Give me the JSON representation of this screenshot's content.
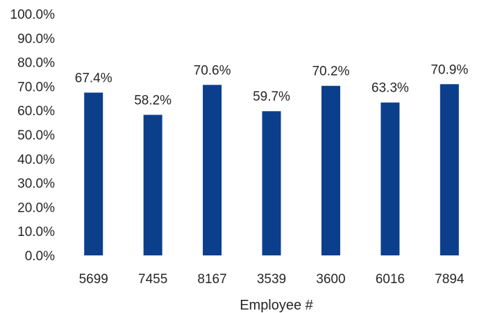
{
  "chart_data": {
    "type": "bar",
    "title": "",
    "xlabel": "Employee #",
    "ylabel": "",
    "categories": [
      "5699",
      "7455",
      "8167",
      "3539",
      "3600",
      "6016",
      "7894"
    ],
    "values": [
      67.4,
      58.2,
      70.6,
      59.7,
      70.2,
      63.3,
      70.9
    ],
    "data_labels": [
      "67.4%",
      "58.2%",
      "70.6%",
      "59.7%",
      "70.2%",
      "63.3%",
      "70.9%"
    ],
    "ylim": [
      0,
      100
    ],
    "yticks": [
      0,
      10,
      20,
      30,
      40,
      50,
      60,
      70,
      80,
      90,
      100
    ],
    "ytick_labels": [
      "0.0%",
      "10.0%",
      "20.0%",
      "30.0%",
      "40.0%",
      "50.0%",
      "60.0%",
      "70.0%",
      "80.0%",
      "90.0%",
      "100.0%"
    ],
    "grid": false,
    "legend": "none",
    "bar_color": "#0B3F8C"
  }
}
